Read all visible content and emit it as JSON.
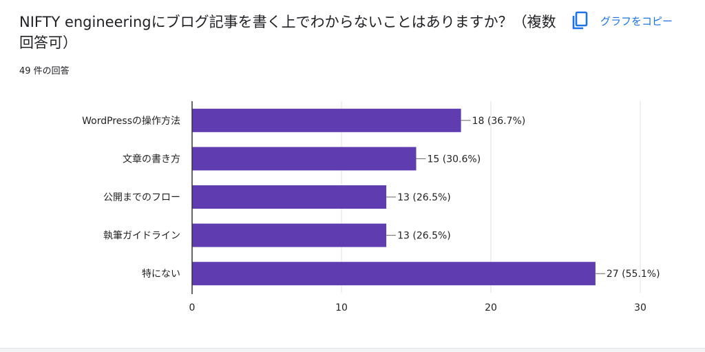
{
  "question": {
    "title": "NIFTY engineeringにブログ記事を書く上でわからないことはありますか？（複数回答可）",
    "response_count": "49 件の回答"
  },
  "toolbar": {
    "copy_icon": "copy-icon",
    "copy_label": "グラフをコピー"
  },
  "colors": {
    "bar": "#5f3db0",
    "accent": "#1a73e8",
    "grid": "#e0e0e0",
    "axis": "#333333"
  },
  "chart_data": {
    "type": "bar",
    "orientation": "horizontal",
    "categories": [
      "WordPressの操作方法",
      "文章の書き方",
      "公開までのフロー",
      "執筆ガイドライン",
      "特にない"
    ],
    "values": [
      18,
      15,
      13,
      13,
      27
    ],
    "data_labels": [
      "18 (36.7%)",
      "15 (30.6%)",
      "13 (26.5%)",
      "13 (26.5%)",
      "27 (55.1%)"
    ],
    "xlim": [
      0,
      30
    ],
    "xticks": [
      0,
      10,
      20,
      30
    ],
    "grid": true,
    "legend": "none"
  }
}
